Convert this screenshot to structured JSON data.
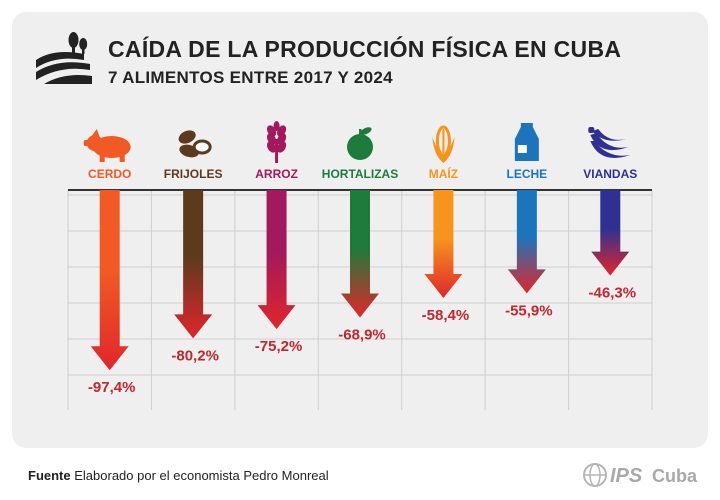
{
  "header": {
    "title": "CAÍDA DE LA PRODUCCIÓN FÍSICA EN CUBA",
    "subtitle": "7 ALIMENTOS ENTRE 2017 Y 2024"
  },
  "chart_data": {
    "type": "bar",
    "categories": [
      "CERDO",
      "FRIJOLES",
      "ARROZ",
      "HORTALIZAS",
      "MAÍZ",
      "LECHE",
      "VIANDAS"
    ],
    "values": [
      -97.4,
      -80.2,
      -75.2,
      -68.9,
      -58.4,
      -55.9,
      -46.3
    ],
    "value_labels": [
      "-97,4%",
      "-80,2%",
      "-75,2%",
      "-68,9%",
      "-58,4%",
      "-55,9%",
      "-46,3%"
    ],
    "colors": [
      "#f15a24",
      "#5c3a1e",
      "#a3195b",
      "#1e7b3c",
      "#f7941d",
      "#1c75bc",
      "#2e3192"
    ],
    "arrow_end_color": "#e0262b",
    "label_color": "#c1272d",
    "icons": [
      "pig-icon",
      "beans-icon",
      "wheat-icon",
      "apple-icon",
      "corn-icon",
      "milk-icon",
      "banana-icon"
    ],
    "ylim": [
      0,
      -100
    ],
    "grid": true
  },
  "footer": {
    "source_label": "Fuente",
    "source_text": "Elaborado por el economista Pedro Monreal",
    "brand": "IPS",
    "brand_suffix": "Cuba"
  }
}
